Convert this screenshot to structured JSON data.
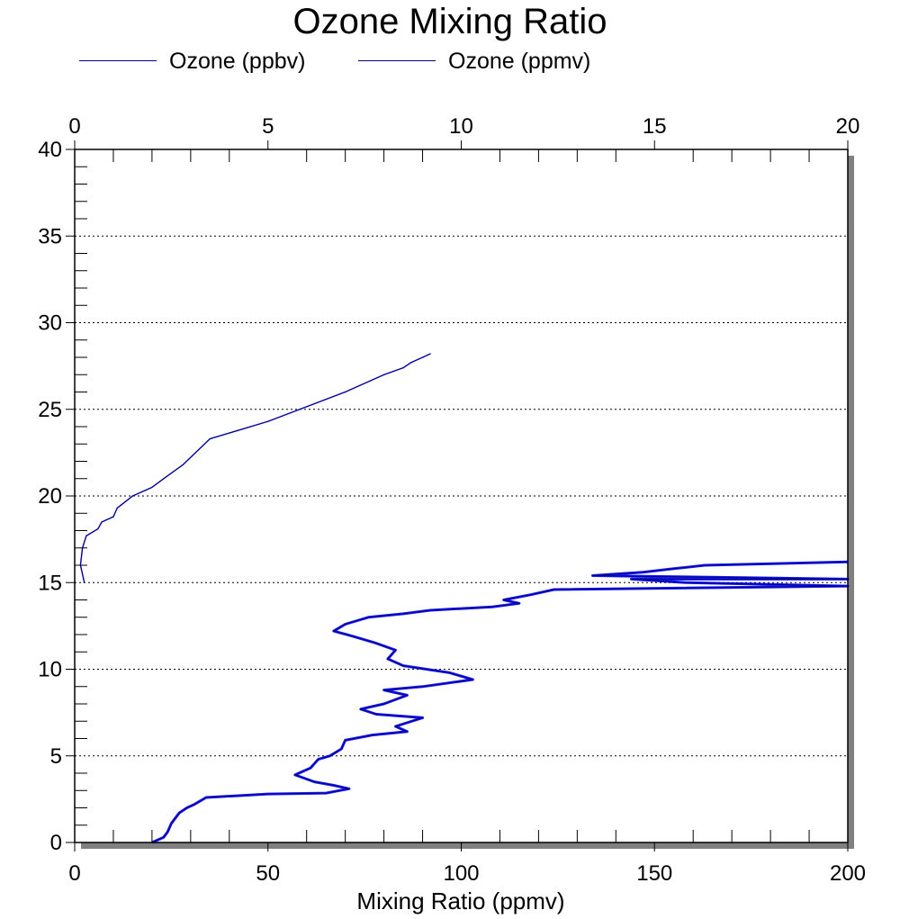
{
  "chart_data": {
    "type": "line",
    "title": "Ozone Mixing Ratio",
    "xlabel": "Mixing Ratio (ppmv)",
    "ylabel": "",
    "legend": {
      "placement": "top-left"
    },
    "grid": {
      "y_major": true,
      "style": "dotted"
    },
    "colors": {
      "series": "#000080",
      "fill": "#0000ff",
      "frame_shadow": "#808080"
    },
    "x_bottom": {
      "lim": [
        0,
        200
      ],
      "ticks": [
        "0",
        "50",
        "100",
        "150",
        "200"
      ],
      "tick_values": [
        0,
        50,
        100,
        150,
        200
      ]
    },
    "x_top": {
      "lim": [
        0,
        20
      ],
      "ticks": [
        "0",
        "5",
        "10",
        "15",
        "20"
      ],
      "tick_values": [
        0,
        5,
        10,
        15,
        20
      ]
    },
    "ylim": [
      0,
      40
    ],
    "y_ticks": [
      "0",
      "5",
      "10",
      "15",
      "20",
      "25",
      "30",
      "35",
      "40"
    ],
    "y_tick_values": [
      0,
      5,
      10,
      15,
      20,
      25,
      30,
      35,
      40
    ],
    "series": [
      {
        "name": "Ozone (ppbv)",
        "axis": "bottom",
        "points": [
          [
            20,
            0.0
          ],
          [
            23,
            0.3
          ],
          [
            24,
            0.6
          ],
          [
            25,
            1.1
          ],
          [
            27,
            1.7
          ],
          [
            29,
            2.0
          ],
          [
            31,
            2.2
          ],
          [
            34,
            2.6
          ],
          [
            50,
            2.8
          ],
          [
            65,
            2.85
          ],
          [
            71,
            3.1
          ],
          [
            67,
            3.3
          ],
          [
            62,
            3.5
          ],
          [
            57,
            3.9
          ],
          [
            61,
            4.3
          ],
          [
            63,
            4.8
          ],
          [
            66,
            5.0
          ],
          [
            69,
            5.4
          ],
          [
            70,
            5.9
          ],
          [
            77,
            6.2
          ],
          [
            86,
            6.4
          ],
          [
            83,
            6.7
          ],
          [
            90,
            7.2
          ],
          [
            78,
            7.4
          ],
          [
            74,
            7.7
          ],
          [
            80,
            8.0
          ],
          [
            86,
            8.5
          ],
          [
            80,
            8.8
          ],
          [
            90,
            9.0
          ],
          [
            103,
            9.4
          ],
          [
            97,
            9.8
          ],
          [
            85,
            10.2
          ],
          [
            81,
            10.6
          ],
          [
            83,
            11.1
          ],
          [
            78,
            11.5
          ],
          [
            72,
            11.9
          ],
          [
            67,
            12.2
          ],
          [
            70,
            12.6
          ],
          [
            76,
            13.0
          ],
          [
            85,
            13.2
          ],
          [
            92,
            13.4
          ],
          [
            108,
            13.6
          ],
          [
            115,
            13.8
          ],
          [
            111,
            14.0
          ],
          [
            118,
            14.3
          ],
          [
            124,
            14.6
          ],
          [
            200,
            14.8
          ],
          [
            158,
            15.0
          ],
          [
            144,
            15.2
          ],
          [
            200,
            15.2
          ],
          [
            134,
            15.4
          ],
          [
            147,
            15.6
          ],
          [
            155,
            15.8
          ],
          [
            163,
            16.0
          ],
          [
            200,
            16.2
          ]
        ]
      },
      {
        "name": "Ozone (ppmv)",
        "axis": "top",
        "points": [
          [
            0.25,
            15.0
          ],
          [
            0.2,
            15.5
          ],
          [
            0.15,
            16.0
          ],
          [
            0.2,
            17.0
          ],
          [
            0.3,
            17.7
          ],
          [
            0.6,
            18.1
          ],
          [
            0.7,
            18.5
          ],
          [
            1.0,
            18.8
          ],
          [
            1.1,
            19.3
          ],
          [
            1.5,
            20.0
          ],
          [
            2.0,
            20.5
          ],
          [
            2.3,
            21.0
          ],
          [
            2.8,
            21.8
          ],
          [
            3.5,
            23.3
          ],
          [
            5.0,
            24.3
          ],
          [
            7.0,
            26.0
          ],
          [
            8.0,
            27.0
          ],
          [
            8.5,
            27.4
          ],
          [
            8.7,
            27.7
          ],
          [
            9.0,
            28.0
          ],
          [
            9.2,
            28.2
          ]
        ]
      }
    ]
  }
}
